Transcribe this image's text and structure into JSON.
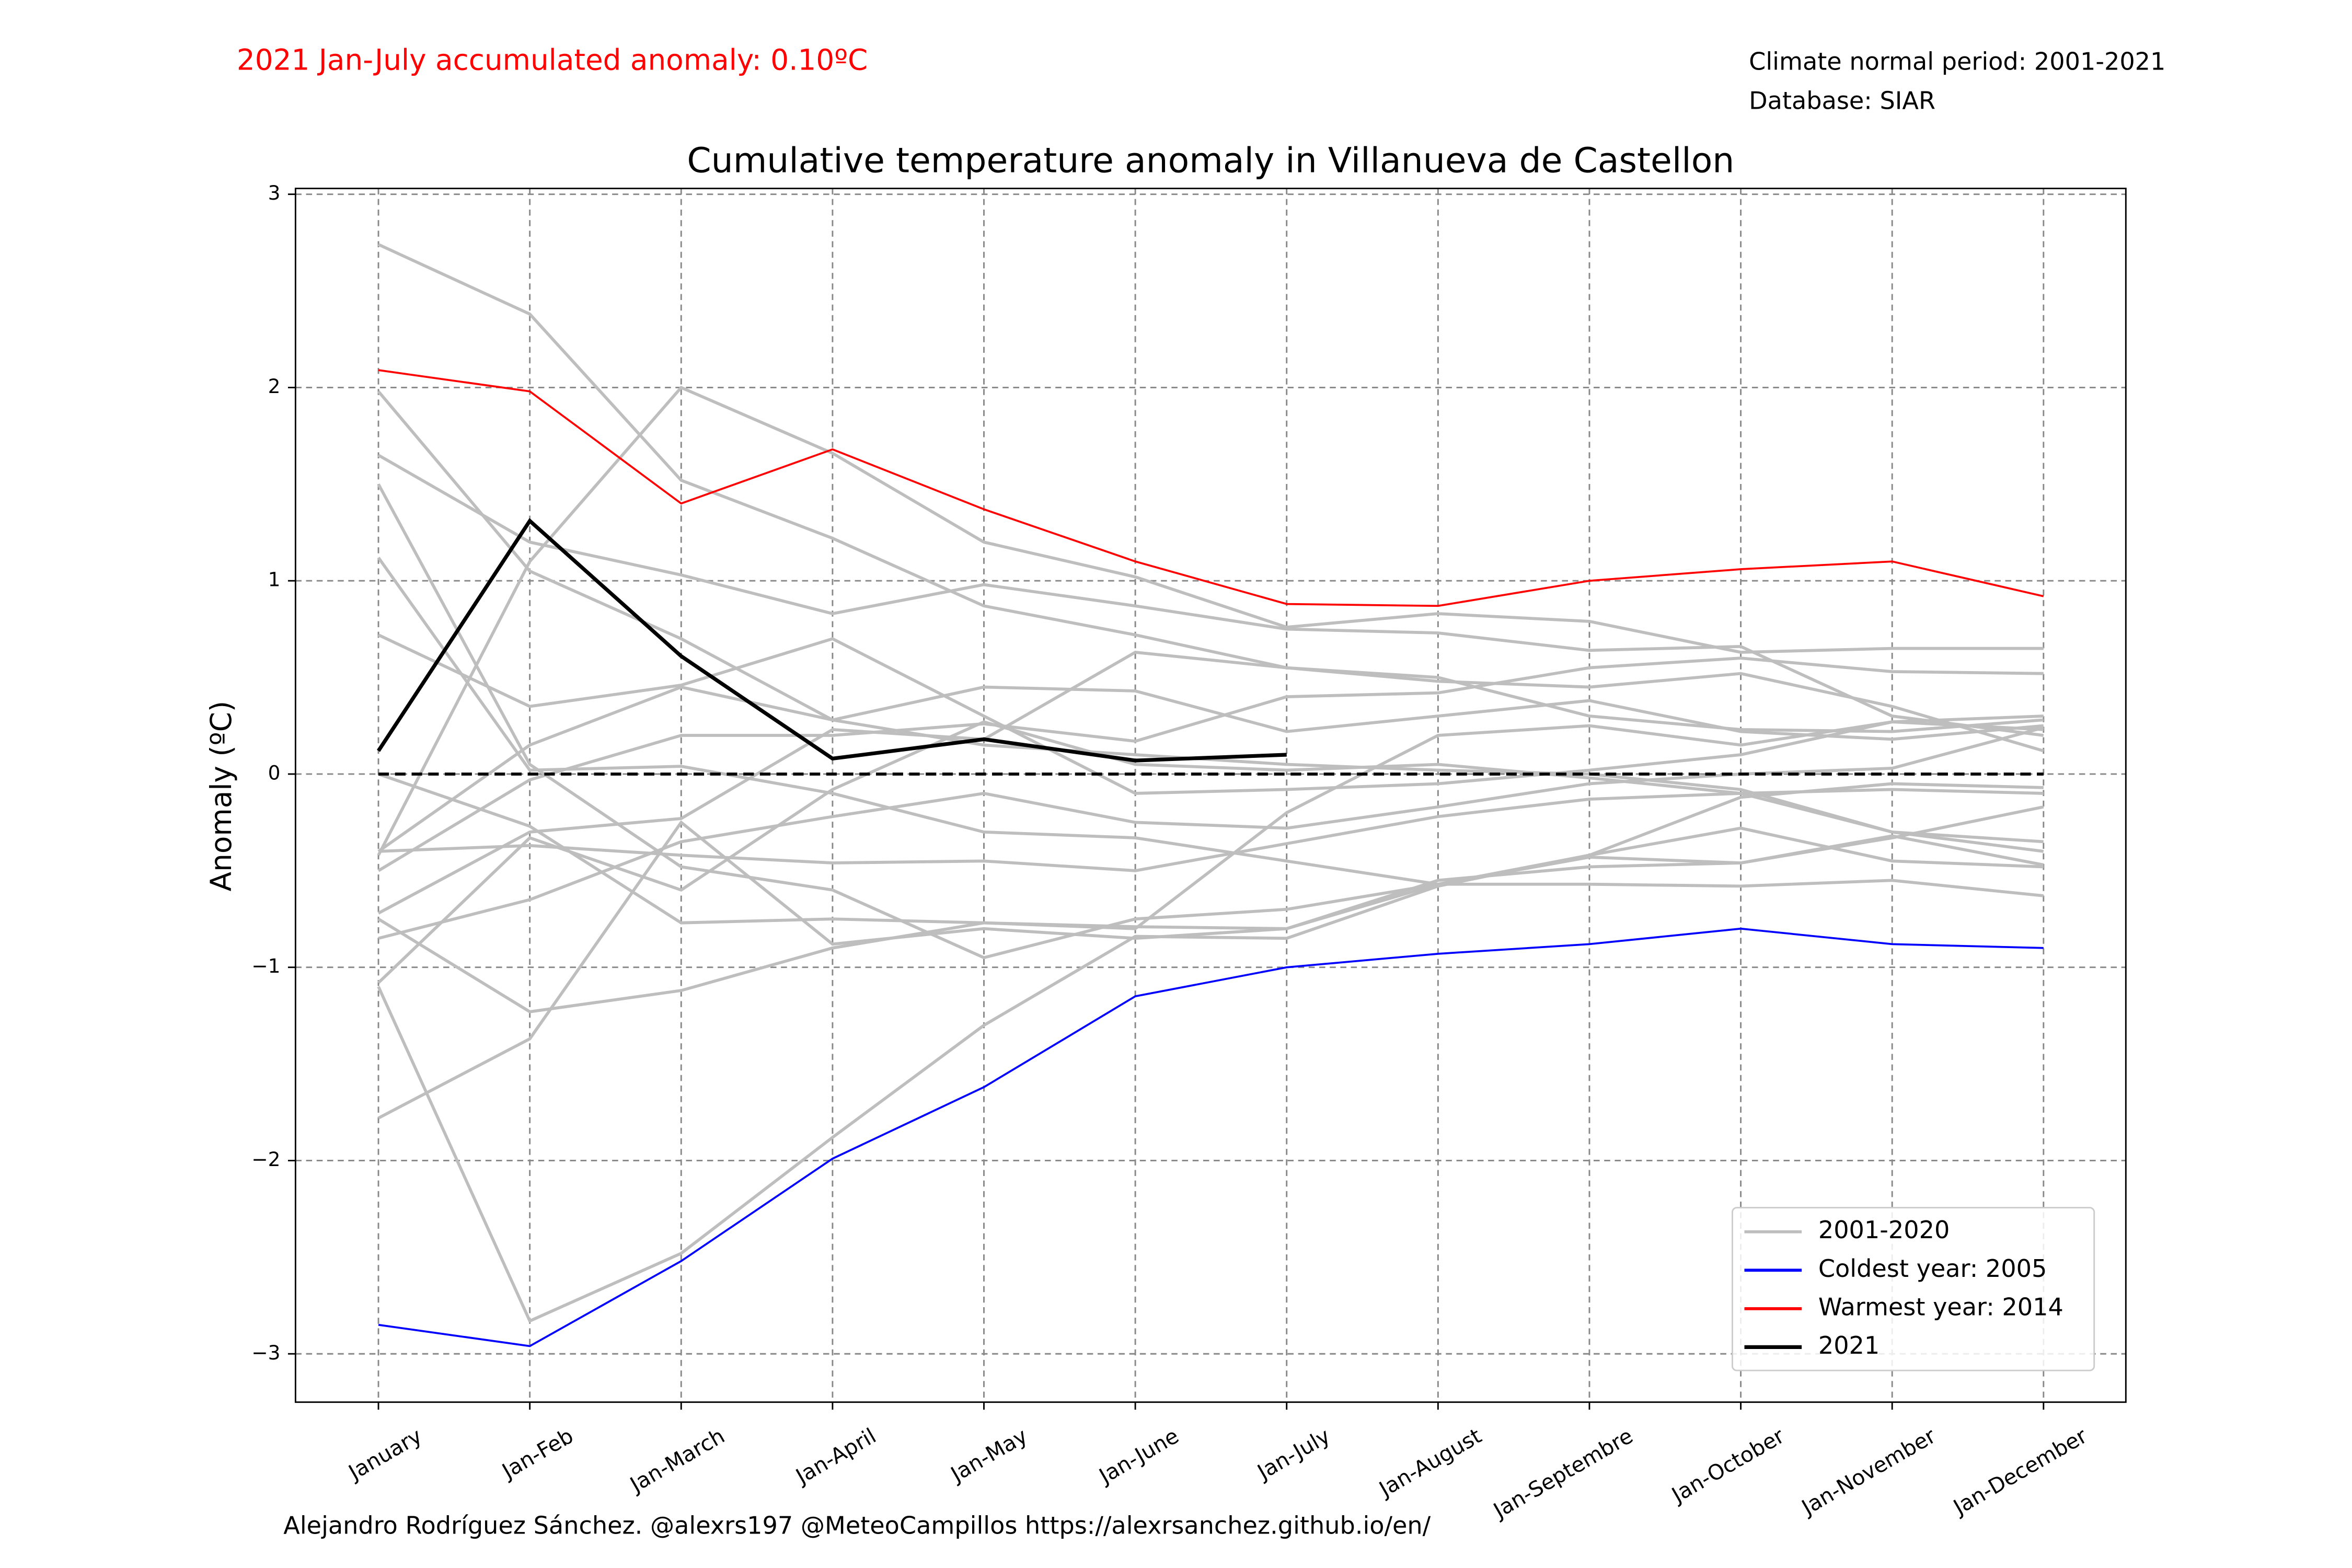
{
  "chart_data": {
    "type": "line",
    "title": "Cumulative temperature anomaly in Villanueva de Castellon",
    "annotation_left": "2021 Jan-July accumulated anomaly: 0.10ºC",
    "annotation_right": [
      "Climate normal period: 2001-2021",
      "Database: SIAR"
    ],
    "footer": "Alejandro Rodríguez Sánchez. @alexrs197 @MeteoCampillos   https://alexrsanchez.github.io/en/",
    "ylabel": "Anomaly (ºC)",
    "categories": [
      "January",
      "Jan-Feb",
      "Jan-March",
      "Jan-April",
      "Jan-May",
      "Jan-June",
      "Jan-July",
      "Jan-August",
      "Jan-Septembre",
      "Jan-October",
      "Jan-November",
      "Jan-December"
    ],
    "ylim": [
      -3.25,
      3.03
    ],
    "yticks": [
      {
        "value": -3,
        "label": "−3"
      },
      {
        "value": -2,
        "label": "−2"
      },
      {
        "value": -1,
        "label": "−1"
      },
      0,
      1,
      2,
      3
    ],
    "grid": true,
    "reference_line": 0,
    "legend": "lower right",
    "series": [
      {
        "name": "2001-2020",
        "color": "#bebebe",
        "lines": [
          [
            2.74,
            2.38,
            1.52,
            1.22,
            0.87,
            0.72,
            0.55,
            0.48,
            0.45,
            0.52,
            0.35,
            0.12
          ],
          [
            1.98,
            1.05,
            0.7,
            0.28,
            0.15,
            0.1,
            0.05,
            0.02,
            0.0,
            -0.08,
            -0.3,
            -0.4
          ],
          [
            1.65,
            1.2,
            1.03,
            0.83,
            0.98,
            0.87,
            0.75,
            0.73,
            0.64,
            0.66,
            0.3,
            0.2
          ],
          [
            1.5,
            0.05,
            -0.48,
            -0.6,
            -0.95,
            -0.75,
            -0.7,
            -0.57,
            -0.42,
            -0.28,
            -0.45,
            -0.48
          ],
          [
            1.12,
            0.02,
            0.04,
            -0.1,
            -0.3,
            -0.33,
            -0.45,
            -0.57,
            -0.57,
            -0.58,
            -0.55,
            -0.63
          ],
          [
            0.72,
            0.35,
            0.46,
            0.7,
            0.3,
            -0.1,
            -0.08,
            -0.05,
            0.02,
            0.1,
            0.27,
            0.3
          ],
          [
            -0.4,
            0.15,
            0.45,
            0.28,
            0.45,
            0.43,
            0.22,
            0.3,
            0.38,
            0.22,
            0.18,
            0.25
          ],
          [
            -0.5,
            -0.03,
            0.2,
            0.2,
            0.26,
            0.17,
            0.4,
            0.42,
            0.55,
            0.6,
            0.53,
            0.52
          ],
          [
            -0.42,
            1.1,
            2.0,
            1.66,
            1.2,
            1.02,
            0.76,
            0.83,
            0.79,
            0.63,
            0.65,
            0.65
          ],
          [
            -0.72,
            -0.3,
            -0.23,
            0.23,
            0.18,
            0.63,
            0.55,
            0.5,
            0.3,
            0.23,
            0.22,
            0.28
          ],
          [
            -0.85,
            -0.65,
            -0.35,
            -0.22,
            -0.1,
            -0.25,
            -0.28,
            -0.17,
            -0.05,
            0.0,
            0.03,
            0.24
          ],
          [
            -1.08,
            -0.33,
            -0.6,
            -0.08,
            0.27,
            0.05,
            0.02,
            0.05,
            -0.02,
            -0.1,
            -0.3,
            -0.35
          ],
          [
            -1.78,
            -1.37,
            -0.25,
            -0.88,
            -0.8,
            -0.85,
            -0.8,
            -0.57,
            -0.43,
            -0.46,
            -0.33,
            -0.17
          ],
          [
            -1.1,
            -2.83,
            -2.48,
            -1.88,
            -1.3,
            -0.84,
            -0.85,
            -0.58,
            -0.42,
            -0.12,
            -0.05,
            -0.07
          ],
          [
            -0.75,
            -1.23,
            -1.12,
            -0.9,
            -0.77,
            -0.79,
            -0.8,
            -0.55,
            -0.48,
            -0.46,
            -0.32,
            -0.47
          ],
          [
            -0.4,
            -0.37,
            -0.42,
            -0.46,
            -0.45,
            -0.5,
            -0.36,
            -0.22,
            -0.13,
            -0.1,
            -0.08,
            -0.1
          ],
          [
            0.0,
            -0.27,
            -0.77,
            -0.75,
            -0.77,
            -0.8,
            -0.2,
            0.2,
            0.25,
            0.15,
            0.27,
            0.23
          ]
        ]
      },
      {
        "name": "Coldest year: 2005",
        "color": "#0000ff",
        "values": [
          -2.85,
          -2.96,
          -2.52,
          -1.99,
          -1.62,
          -1.15,
          -1.0,
          -0.93,
          -0.88,
          -0.8,
          -0.88,
          -0.9
        ]
      },
      {
        "name": "Warmest year: 2014",
        "color": "#ff0000",
        "values": [
          2.09,
          1.98,
          1.4,
          1.68,
          1.37,
          1.1,
          0.88,
          0.87,
          1.0,
          1.06,
          1.1,
          0.92
        ]
      },
      {
        "name": "2021",
        "color": "#000000",
        "values": [
          0.12,
          1.31,
          0.61,
          0.08,
          0.18,
          0.07,
          0.1,
          null,
          null,
          null,
          null,
          null
        ]
      }
    ]
  }
}
